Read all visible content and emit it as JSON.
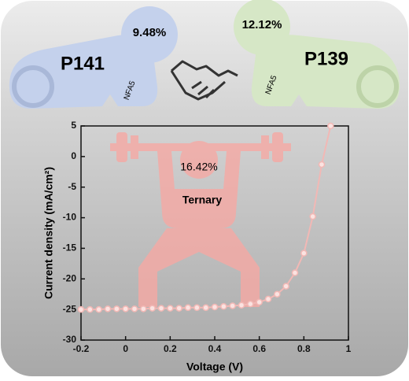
{
  "top": {
    "left": {
      "name": "P141",
      "pce": "9.48%",
      "acceptor": "NFA5"
    },
    "right": {
      "name": "P139",
      "pce": "12.12%",
      "acceptor": "NFA5"
    }
  },
  "illustration": {
    "pce": "16.42%",
    "label": "Ternary"
  },
  "chart_data": {
    "type": "line",
    "xlabel": "Voltage (V)",
    "ylabel": "Current density (mA/cm²)",
    "x": [
      -0.2,
      -0.16,
      -0.12,
      -0.08,
      -0.04,
      0,
      0.04,
      0.08,
      0.12,
      0.16,
      0.2,
      0.24,
      0.28,
      0.32,
      0.36,
      0.4,
      0.44,
      0.48,
      0.52,
      0.56,
      0.6,
      0.64,
      0.68,
      0.72,
      0.76,
      0.8,
      0.84,
      0.88,
      0.92
    ],
    "series": [
      {
        "color": "#f2b8b5",
        "values": [
          -25.0,
          -25.0,
          -25.0,
          -24.9,
          -24.9,
          -24.9,
          -24.9,
          -24.9,
          -24.8,
          -24.8,
          -24.8,
          -24.8,
          -24.7,
          -24.7,
          -24.7,
          -24.6,
          -24.5,
          -24.4,
          -24.3,
          -24.1,
          -23.8,
          -23.3,
          -22.5,
          -21.2,
          -19.0,
          -15.8,
          -9.8,
          -1.3,
          5
        ]
      }
    ],
    "xlim": [
      -0.2,
      1
    ],
    "ylim": [
      -30,
      5
    ],
    "xticks": [
      -0.2,
      0,
      0.2,
      0.4,
      0.6,
      0.8,
      1
    ],
    "yticks": [
      5,
      0,
      -5,
      -10,
      -15,
      -20,
      -25,
      -30
    ]
  }
}
